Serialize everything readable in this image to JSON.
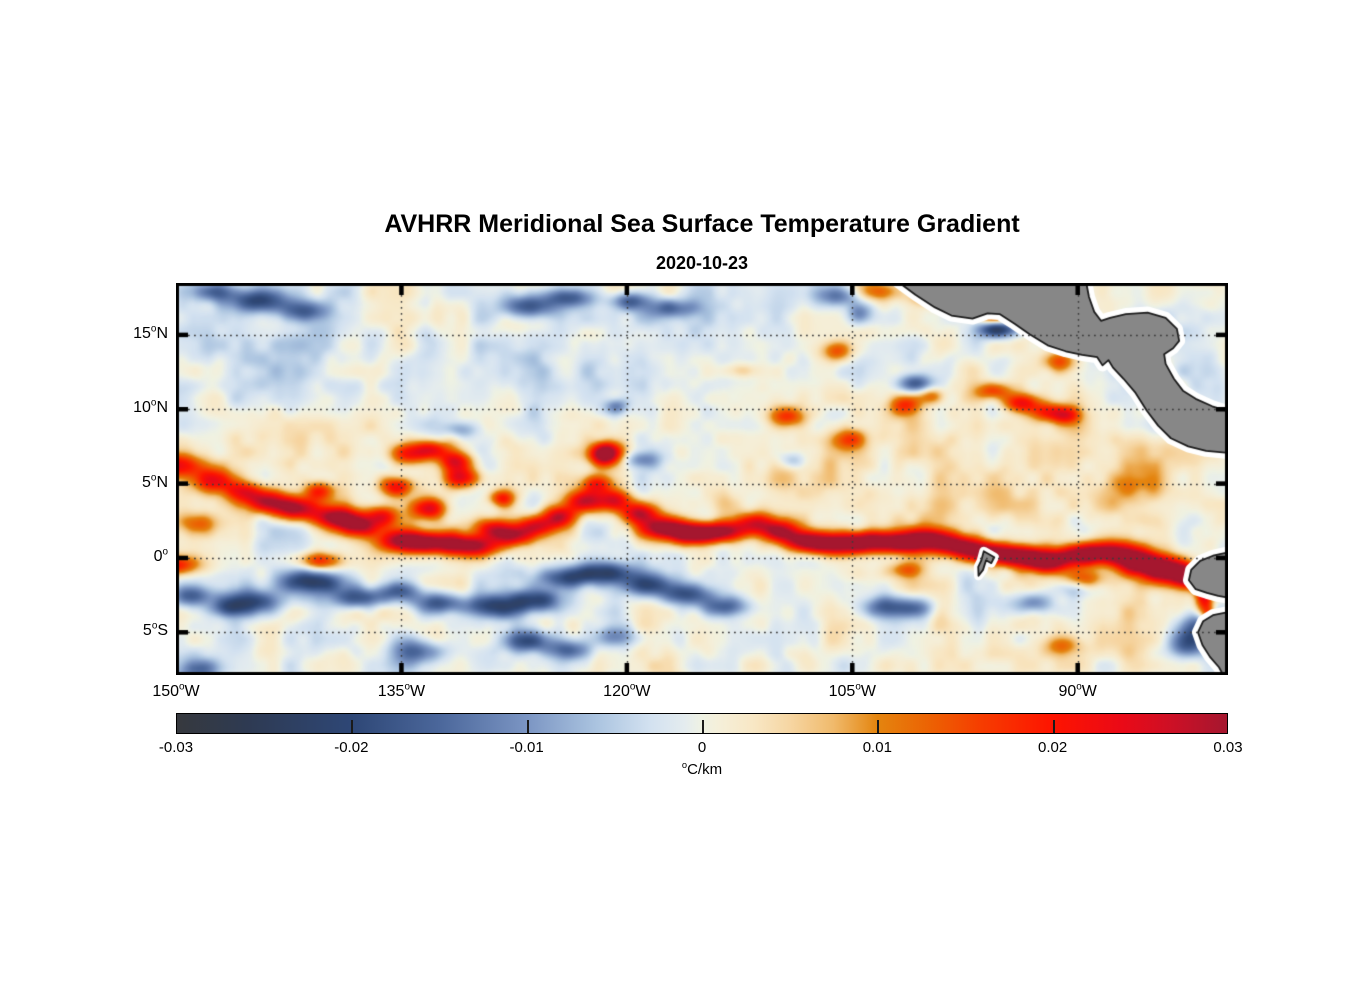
{
  "chart_data": {
    "type": "heatmap",
    "title": "AVHRR Meridional Sea Surface Temperature Gradient",
    "subtitle": "2020-10-23",
    "lon_range": [
      -150,
      -80.0
    ],
    "lat_range": [
      -7.87,
      18.49
    ],
    "grid": "dotted",
    "x_ticks": [
      {
        "lon": -150,
        "deg": "150",
        "sup": "o",
        "hem": "W"
      },
      {
        "lon": -135,
        "deg": "135",
        "sup": "o",
        "hem": "W"
      },
      {
        "lon": -120,
        "deg": "120",
        "sup": "o",
        "hem": "W"
      },
      {
        "lon": -105,
        "deg": "105",
        "sup": "o",
        "hem": "W"
      },
      {
        "lon": -90,
        "deg": "90",
        "sup": "o",
        "hem": "W"
      }
    ],
    "y_ticks": [
      {
        "lat": 15,
        "deg": "15",
        "sup": "o",
        "hem": "N"
      },
      {
        "lat": 10,
        "deg": "10",
        "sup": "o",
        "hem": "N"
      },
      {
        "lat": 5,
        "deg": "5",
        "sup": "o",
        "hem": "N"
      },
      {
        "lat": 0,
        "deg": "0",
        "sup": "o",
        "hem": ""
      },
      {
        "lat": -5,
        "deg": "5",
        "sup": "o",
        "hem": "S"
      }
    ],
    "colorbar": {
      "min": -0.03,
      "max": 0.03,
      "tick_values": [
        -0.03,
        -0.02,
        -0.01,
        0,
        0.01,
        0.02,
        0.03
      ],
      "tick_labels": [
        "-0.03",
        "-0.02",
        "-0.01",
        "0",
        "0.01",
        "0.02",
        "0.03"
      ],
      "unit_sup": "o",
      "unit_text": "C/km",
      "stops": [
        [
          -0.03,
          "#36393e"
        ],
        [
          -0.026,
          "#2e3a52"
        ],
        [
          -0.02,
          "#2e4776"
        ],
        [
          -0.015,
          "#4b679b"
        ],
        [
          -0.01,
          "#7b95c3"
        ],
        [
          -0.006,
          "#abc4e0"
        ],
        [
          -0.003,
          "#d2e1f0"
        ],
        [
          -0.001,
          "#e4ecef"
        ],
        [
          0.0,
          "#eff2e3"
        ],
        [
          0.001,
          "#f5efd9"
        ],
        [
          0.003,
          "#f8e7c4"
        ],
        [
          0.005,
          "#f6d6a3"
        ],
        [
          0.0075,
          "#f0ba6c"
        ],
        [
          0.01,
          "#e4850f"
        ],
        [
          0.013,
          "#ec6203"
        ],
        [
          0.016,
          "#f63c00"
        ],
        [
          0.02,
          "#fe1400"
        ],
        [
          0.024,
          "#ea0a17"
        ],
        [
          0.027,
          "#cb1026"
        ],
        [
          0.03,
          "#a5172f"
        ]
      ]
    },
    "land_color": "#878787",
    "land_outline": "#1c1c1c",
    "coast_mask_color": "#ffffff",
    "noise": {
      "amp1": 0.0034,
      "scale1": 1.8,
      "amp2": 0.0017,
      "scale2": 0.9,
      "amp3": 0.002,
      "scale3": 3.6
    },
    "features": [
      [
        -150.3,
        6.2,
        1.4,
        0.6,
        0.024
      ],
      [
        -150.2,
        -0.5,
        1.2,
        0.5,
        0.022
      ],
      [
        -147.6,
        5.2,
        1.1,
        0.55,
        0.018
      ],
      [
        -145.6,
        4.5,
        1.0,
        0.5,
        0.016
      ],
      [
        -144.0,
        3.8,
        1.1,
        0.55,
        0.026
      ],
      [
        -142.0,
        3.3,
        1.1,
        0.55,
        0.028
      ],
      [
        -140.5,
        4.5,
        0.7,
        0.45,
        0.018
      ],
      [
        -140.3,
        -0.2,
        1.0,
        0.4,
        0.016
      ],
      [
        -139.3,
        2.7,
        1.1,
        0.5,
        0.03
      ],
      [
        -137.8,
        2.1,
        0.9,
        0.5,
        0.026
      ],
      [
        -136.3,
        2.8,
        0.8,
        0.5,
        0.022
      ],
      [
        -135.3,
        4.8,
        0.8,
        0.5,
        0.024
      ],
      [
        -135.0,
        1.2,
        1.2,
        0.55,
        0.026
      ],
      [
        -134.5,
        7.0,
        0.9,
        0.5,
        0.02
      ],
      [
        -133.0,
        7.3,
        0.8,
        0.45,
        0.02
      ],
      [
        -132.8,
        1.0,
        1.4,
        0.5,
        0.028
      ],
      [
        -131.4,
        6.5,
        0.8,
        0.45,
        0.02
      ],
      [
        -133.2,
        3.3,
        0.8,
        0.5,
        0.022
      ],
      [
        -131.0,
        5.4,
        0.8,
        0.5,
        0.024
      ],
      [
        -130.2,
        0.8,
        1.3,
        0.5,
        0.026
      ],
      [
        -129.0,
        2.0,
        0.9,
        0.5,
        0.022
      ],
      [
        -128.3,
        4.0,
        0.6,
        0.4,
        0.018
      ],
      [
        -127.5,
        1.5,
        1.0,
        0.5,
        0.026
      ],
      [
        -126.0,
        2.2,
        0.9,
        0.5,
        0.024
      ],
      [
        -124.5,
        2.8,
        0.8,
        0.5,
        0.022
      ],
      [
        -122.8,
        3.8,
        0.8,
        0.5,
        0.024
      ],
      [
        -121.5,
        6.8,
        0.7,
        0.5,
        0.022
      ],
      [
        -122.0,
        5.0,
        0.7,
        0.5,
        0.022
      ],
      [
        -120.8,
        3.9,
        0.8,
        0.5,
        0.024
      ],
      [
        -119.2,
        3.0,
        0.9,
        0.5,
        0.026
      ],
      [
        -117.5,
        2.0,
        1.1,
        0.5,
        0.03
      ],
      [
        -115.5,
        1.6,
        1.1,
        0.5,
        0.034
      ],
      [
        -113.5,
        1.8,
        1.1,
        0.5,
        0.028
      ],
      [
        -111.5,
        2.4,
        0.9,
        0.5,
        0.022
      ],
      [
        -109.8,
        1.8,
        0.9,
        0.5,
        0.024
      ],
      [
        -108.0,
        1.1,
        1.1,
        0.5,
        0.03
      ],
      [
        -106.0,
        0.9,
        1.1,
        0.5,
        0.028
      ],
      [
        -104.0,
        1.1,
        1.1,
        0.5,
        0.03
      ],
      [
        -102.0,
        1.0,
        1.1,
        0.5,
        0.026
      ],
      [
        -101.5,
        -0.8,
        0.9,
        0.4,
        0.012
      ],
      [
        -100.0,
        1.2,
        1.1,
        0.5,
        0.03
      ],
      [
        -98.0,
        0.8,
        1.1,
        0.5,
        0.028
      ],
      [
        -96.0,
        0.4,
        1.1,
        0.5,
        0.03
      ],
      [
        -93.8,
        0.1,
        1.1,
        0.5,
        0.034
      ],
      [
        -92.0,
        -0.3,
        0.9,
        0.5,
        0.03
      ],
      [
        -90.0,
        0.2,
        1.1,
        0.5,
        0.028
      ],
      [
        -88.0,
        0.4,
        1.1,
        0.55,
        0.03
      ],
      [
        -86.0,
        -0.2,
        1.1,
        0.6,
        0.034
      ],
      [
        -84.2,
        -0.8,
        1.1,
        0.6,
        0.036
      ],
      [
        -82.6,
        -1.3,
        0.8,
        0.55,
        0.03
      ],
      [
        -89.5,
        -1.5,
        1.0,
        0.5,
        0.014
      ],
      [
        -81.6,
        -2.6,
        0.45,
        0.8,
        0.026
      ],
      [
        -81.3,
        -3.9,
        0.35,
        0.5,
        0.022
      ],
      [
        -121.3,
        7.2,
        0.7,
        0.45,
        0.02
      ],
      [
        -109.3,
        9.5,
        0.9,
        0.5,
        0.016
      ],
      [
        -105.3,
        8.0,
        0.8,
        0.5,
        0.014
      ],
      [
        -106.0,
        13.9,
        0.7,
        0.5,
        0.014
      ],
      [
        -112.4,
        12.6,
        0.8,
        0.35,
        0.007
      ],
      [
        -95.6,
        16.25,
        0.8,
        0.35,
        0.02
      ],
      [
        -103.5,
        17.9,
        1.1,
        0.45,
        0.012
      ],
      [
        -99.8,
        17.5,
        1.0,
        0.4,
        0.011
      ],
      [
        -95.6,
        11.2,
        0.85,
        0.45,
        0.018
      ],
      [
        -93.8,
        10.4,
        0.85,
        0.45,
        0.02
      ],
      [
        -92.0,
        9.8,
        0.85,
        0.45,
        0.018
      ],
      [
        -90.8,
        9.6,
        0.65,
        0.4,
        0.016
      ],
      [
        -101.5,
        10.3,
        0.75,
        0.5,
        0.016
      ],
      [
        -99.8,
        10.9,
        0.65,
        0.4,
        0.013
      ],
      [
        -91.2,
        13.2,
        0.8,
        0.5,
        0.014
      ],
      [
        -84.2,
        11.2,
        0.8,
        0.6,
        0.014
      ],
      [
        -83.0,
        10.0,
        0.6,
        0.5,
        0.012
      ],
      [
        -91.0,
        -5.8,
        0.9,
        0.5,
        0.012
      ],
      [
        -86.5,
        5.0,
        1.2,
        0.8,
        0.009
      ],
      [
        -148.5,
        2.3,
        0.9,
        0.5,
        0.011
      ],
      [
        -144.8,
        -2.9,
        1.4,
        0.55,
        -0.019
      ],
      [
        -141.0,
        -1.6,
        1.6,
        0.55,
        -0.023
      ],
      [
        -138.0,
        -2.7,
        1.2,
        0.5,
        -0.019
      ],
      [
        -135.2,
        -2.3,
        1.1,
        0.5,
        -0.015
      ],
      [
        -132.6,
        -3.0,
        1.2,
        0.5,
        -0.017
      ],
      [
        -129.0,
        -3.3,
        1.4,
        0.55,
        -0.02
      ],
      [
        -126.0,
        -2.9,
        1.3,
        0.55,
        -0.019
      ],
      [
        -124.0,
        -1.3,
        1.2,
        0.5,
        -0.017
      ],
      [
        -121.5,
        -1.0,
        1.3,
        0.5,
        -0.021
      ],
      [
        -118.5,
        -1.8,
        1.2,
        0.5,
        -0.019
      ],
      [
        -116.0,
        -2.5,
        1.2,
        0.5,
        -0.018
      ],
      [
        -113.5,
        -3.3,
        1.2,
        0.5,
        -0.016
      ],
      [
        -149.0,
        -2.6,
        1.0,
        0.5,
        -0.016
      ],
      [
        -146.5,
        -3.4,
        0.9,
        0.45,
        -0.014
      ],
      [
        -134.0,
        -6.3,
        1.2,
        0.55,
        -0.016
      ],
      [
        -126.5,
        -5.6,
        1.2,
        0.55,
        -0.02
      ],
      [
        -123.8,
        -6.2,
        1.0,
        0.5,
        -0.015
      ],
      [
        -120.8,
        -5.3,
        1.0,
        0.5,
        -0.013
      ],
      [
        -148.5,
        -7.5,
        1.0,
        0.5,
        -0.012
      ],
      [
        -103.0,
        -3.3,
        1.2,
        0.55,
        -0.014
      ],
      [
        -100.8,
        -3.4,
        1.0,
        0.5,
        -0.013
      ],
      [
        -93.0,
        -3.0,
        1.1,
        0.5,
        -0.014
      ],
      [
        -90.0,
        -2.0,
        0.9,
        0.45,
        -0.013
      ],
      [
        -81.8,
        -4.6,
        1.0,
        0.8,
        -0.018
      ],
      [
        -82.8,
        -5.8,
        0.9,
        0.6,
        -0.014
      ],
      [
        -144.6,
        17.3,
        1.4,
        0.55,
        -0.019
      ],
      [
        -141.6,
        16.6,
        1.1,
        0.5,
        -0.015
      ],
      [
        -147.5,
        17.9,
        1.0,
        0.45,
        -0.013
      ],
      [
        -126.6,
        16.9,
        1.4,
        0.55,
        -0.019
      ],
      [
        -123.8,
        17.5,
        1.1,
        0.45,
        -0.015
      ],
      [
        -119.8,
        17.3,
        0.9,
        0.45,
        -0.016
      ],
      [
        -117.0,
        16.8,
        1.1,
        0.45,
        -0.014
      ],
      [
        -105.8,
        17.6,
        1.1,
        0.5,
        -0.013
      ],
      [
        -104.5,
        16.5,
        0.6,
        0.5,
        -0.011
      ],
      [
        -95.3,
        15.35,
        0.85,
        0.4,
        -0.026
      ],
      [
        -100.8,
        11.7,
        0.75,
        0.45,
        -0.017
      ],
      [
        -120.7,
        10.2,
        0.55,
        0.4,
        -0.013
      ],
      [
        -131.0,
        8.6,
        0.8,
        0.4,
        -0.009
      ],
      [
        -109.0,
        6.5,
        0.6,
        0.4,
        -0.009
      ],
      [
        -119.0,
        6.6,
        0.9,
        0.4,
        -0.01
      ],
      [
        -100,
        4.5,
        8,
        2.5,
        0.0045
      ],
      [
        -88,
        5.5,
        5,
        3,
        0.004
      ],
      [
        -140,
        7.5,
        6,
        1.5,
        0.003
      ],
      [
        -113,
        5.5,
        5,
        1.8,
        0.003
      ],
      [
        -127,
        12.5,
        12,
        2.2,
        -0.0022
      ],
      [
        -145,
        12.5,
        6,
        2,
        -0.002
      ],
      [
        -90,
        -6,
        8,
        1.5,
        0.002
      ]
    ],
    "land_polygons": [
      {
        "name": "central-america",
        "points": [
          [
            -102.0,
            18.6
          ],
          [
            -100.8,
            17.7
          ],
          [
            -99.5,
            16.85
          ],
          [
            -98.4,
            16.3
          ],
          [
            -97.0,
            16.1
          ],
          [
            -96.0,
            16.45
          ],
          [
            -95.2,
            16.4
          ],
          [
            -94.2,
            15.75
          ],
          [
            -93.2,
            15.05
          ],
          [
            -92.0,
            14.3
          ],
          [
            -90.8,
            13.9
          ],
          [
            -89.7,
            13.65
          ],
          [
            -88.7,
            13.5
          ],
          [
            -88.35,
            12.95
          ],
          [
            -87.95,
            13.3
          ],
          [
            -87.65,
            12.8
          ],
          [
            -86.95,
            12.05
          ],
          [
            -86.15,
            11.1
          ],
          [
            -85.4,
            9.9
          ],
          [
            -84.65,
            8.9
          ],
          [
            -83.8,
            8.05
          ],
          [
            -82.65,
            7.5
          ],
          [
            -81.45,
            7.2
          ],
          [
            -79.8,
            7.05
          ],
          [
            -79.8,
            9.8
          ],
          [
            -81.05,
            10.2
          ],
          [
            -82.15,
            10.7
          ],
          [
            -83.0,
            11.25
          ],
          [
            -83.6,
            12.05
          ],
          [
            -84.15,
            13.05
          ],
          [
            -84.25,
            13.7
          ],
          [
            -83.65,
            14.1
          ],
          [
            -83.25,
            14.6
          ],
          [
            -83.4,
            15.4
          ],
          [
            -84.15,
            16.15
          ],
          [
            -85.35,
            16.5
          ],
          [
            -86.8,
            16.4
          ],
          [
            -87.85,
            16.15
          ],
          [
            -88.45,
            15.95
          ],
          [
            -88.9,
            16.55
          ],
          [
            -89.25,
            17.55
          ],
          [
            -89.45,
            18.6
          ]
        ]
      },
      {
        "name": "south-america-north",
        "points": [
          [
            -79.8,
            0.42
          ],
          [
            -81.0,
            0.15
          ],
          [
            -81.85,
            -0.2
          ],
          [
            -82.45,
            -0.8
          ],
          [
            -82.6,
            -1.5
          ],
          [
            -82.15,
            -2.1
          ],
          [
            -81.4,
            -2.35
          ],
          [
            -80.65,
            -2.55
          ],
          [
            -79.8,
            -2.7
          ]
        ]
      },
      {
        "name": "south-america-south",
        "points": [
          [
            -79.8,
            -3.6
          ],
          [
            -81.0,
            -3.85
          ],
          [
            -81.65,
            -4.25
          ],
          [
            -82.0,
            -5.0
          ],
          [
            -81.7,
            -5.85
          ],
          [
            -81.2,
            -6.65
          ],
          [
            -80.6,
            -7.35
          ],
          [
            -80.25,
            -8.0
          ],
          [
            -79.8,
            -8.0
          ]
        ]
      },
      {
        "name": "galapagos-islands",
        "points": [
          [
            -96.25,
            0.45
          ],
          [
            -95.55,
            0.05
          ],
          [
            -95.75,
            -0.35
          ],
          [
            -96.1,
            -0.15
          ],
          [
            -96.3,
            -0.8
          ],
          [
            -96.6,
            -1.2
          ],
          [
            -96.62,
            -0.6
          ],
          [
            -96.42,
            -0.18
          ]
        ]
      }
    ]
  }
}
